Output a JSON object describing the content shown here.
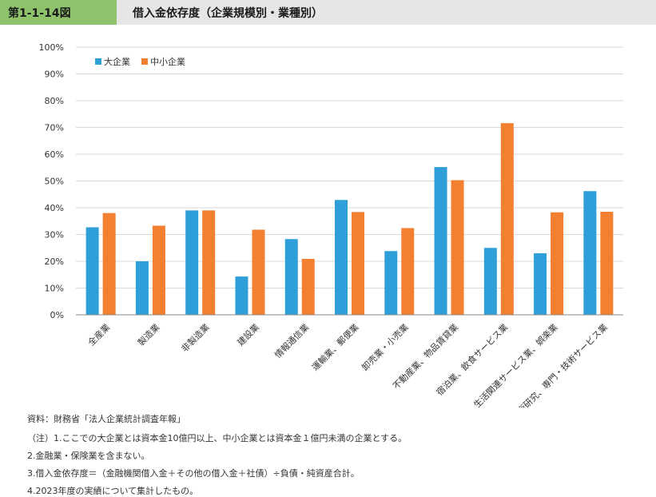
{
  "header": {
    "figure_number": "第1-1-14図",
    "title": "借入金依存度（企業規模別・業種別）"
  },
  "colors": {
    "large": "#2e9fd8",
    "sme": "#f28030",
    "grid": "#d9d9d9",
    "axis": "#888888",
    "header_bg": "#e6e6e6",
    "header_tab": "#8fc36b"
  },
  "chart_data": {
    "type": "bar",
    "title": "",
    "xlabel": "",
    "ylabel": "",
    "ylim": [
      0,
      100
    ],
    "y_ticks": [
      0,
      10,
      20,
      30,
      40,
      50,
      60,
      70,
      80,
      90,
      100
    ],
    "y_tick_labels": [
      "0%",
      "10%",
      "20%",
      "30%",
      "40%",
      "50%",
      "60%",
      "70%",
      "80%",
      "90%",
      "100%"
    ],
    "grid": true,
    "legend_position": "top-left",
    "categories": [
      "全産業",
      "製造業",
      "非製造業",
      "建設業",
      "情報通信業",
      "運輸業、郵便業",
      "卸売業・小売業",
      "不動産業、物品賃貸業",
      "宿泊業、飲食サービス業",
      "生活関連サービス業、娯楽業",
      "学術研究、専門・技術サービス業"
    ],
    "series": [
      {
        "name": "大企業",
        "color": "#2e9fd8",
        "values": [
          32.7,
          20.0,
          39.0,
          14.3,
          28.3,
          42.9,
          23.8,
          55.2,
          25.0,
          23.0,
          46.2
        ]
      },
      {
        "name": "中小企業",
        "color": "#f28030",
        "values": [
          38.0,
          33.3,
          39.0,
          31.8,
          20.9,
          38.4,
          32.4,
          50.3,
          71.6,
          38.3,
          38.5
        ]
      }
    ]
  },
  "notes": [
    "資料：財務省「法人企業統計調査年報」",
    "（注）1.ここでの大企業とは資本金10億円以上、中小企業とは資本金１億円未満の企業とする。",
    "2.金融業・保険業を含まない。",
    "3.借入金依存度＝（金融機関借入金＋その他の借入金＋社債）÷負債・純資産合計。",
    "4.2023年度の実績について集計したもの。"
  ]
}
